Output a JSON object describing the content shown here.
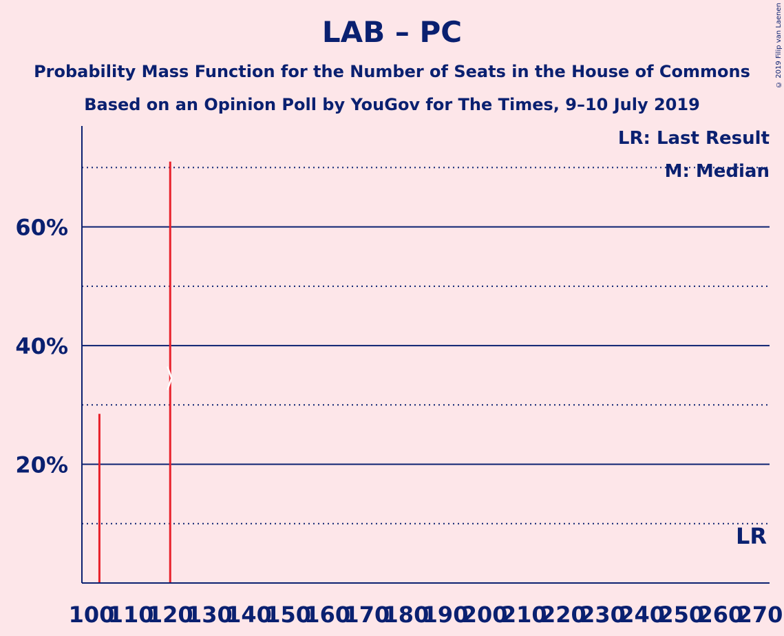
{
  "title": "LAB – PC",
  "subtitle_1": "Probability Mass Function for the Number of Seats in the House of Commons",
  "subtitle_2": "Based on an Opinion Poll by YouGov for The Times, 9–10 July 2019",
  "copyright": "© 2019 Filip van Laenen",
  "legend": {
    "last_result": "LR: Last Result",
    "median": "M: Median"
  },
  "lr_marker": "LR",
  "colors": {
    "background": "#fde6e9",
    "axis": "#0a2070",
    "bar": "#e8202a"
  },
  "chart_data": {
    "type": "bar",
    "xlabel": "",
    "ylabel": "",
    "xlim": [
      100,
      270
    ],
    "ylim": [
      0,
      77
    ],
    "x_ticks": [
      100,
      110,
      120,
      130,
      140,
      150,
      160,
      170,
      180,
      190,
      200,
      210,
      220,
      230,
      240,
      250,
      260,
      270
    ],
    "x_tick_labels": [
      "100",
      "110",
      "120",
      "130",
      "140",
      "150",
      "160",
      "170",
      "180",
      "190",
      "200",
      "210",
      "220",
      "230",
      "240",
      "250",
      "260",
      "270"
    ],
    "y_major_ticks": [
      20,
      40,
      60
    ],
    "y_tick_labels": [
      "20%",
      "40%",
      "60%"
    ],
    "y_minor_gridlines": [
      10,
      30,
      50,
      70
    ],
    "grid": true,
    "legend_placement": "top-right",
    "series": [
      {
        "x": [
          102,
          120
        ],
        "values": [
          28.5,
          71
        ]
      }
    ],
    "median": 120,
    "last_result": 270
  }
}
